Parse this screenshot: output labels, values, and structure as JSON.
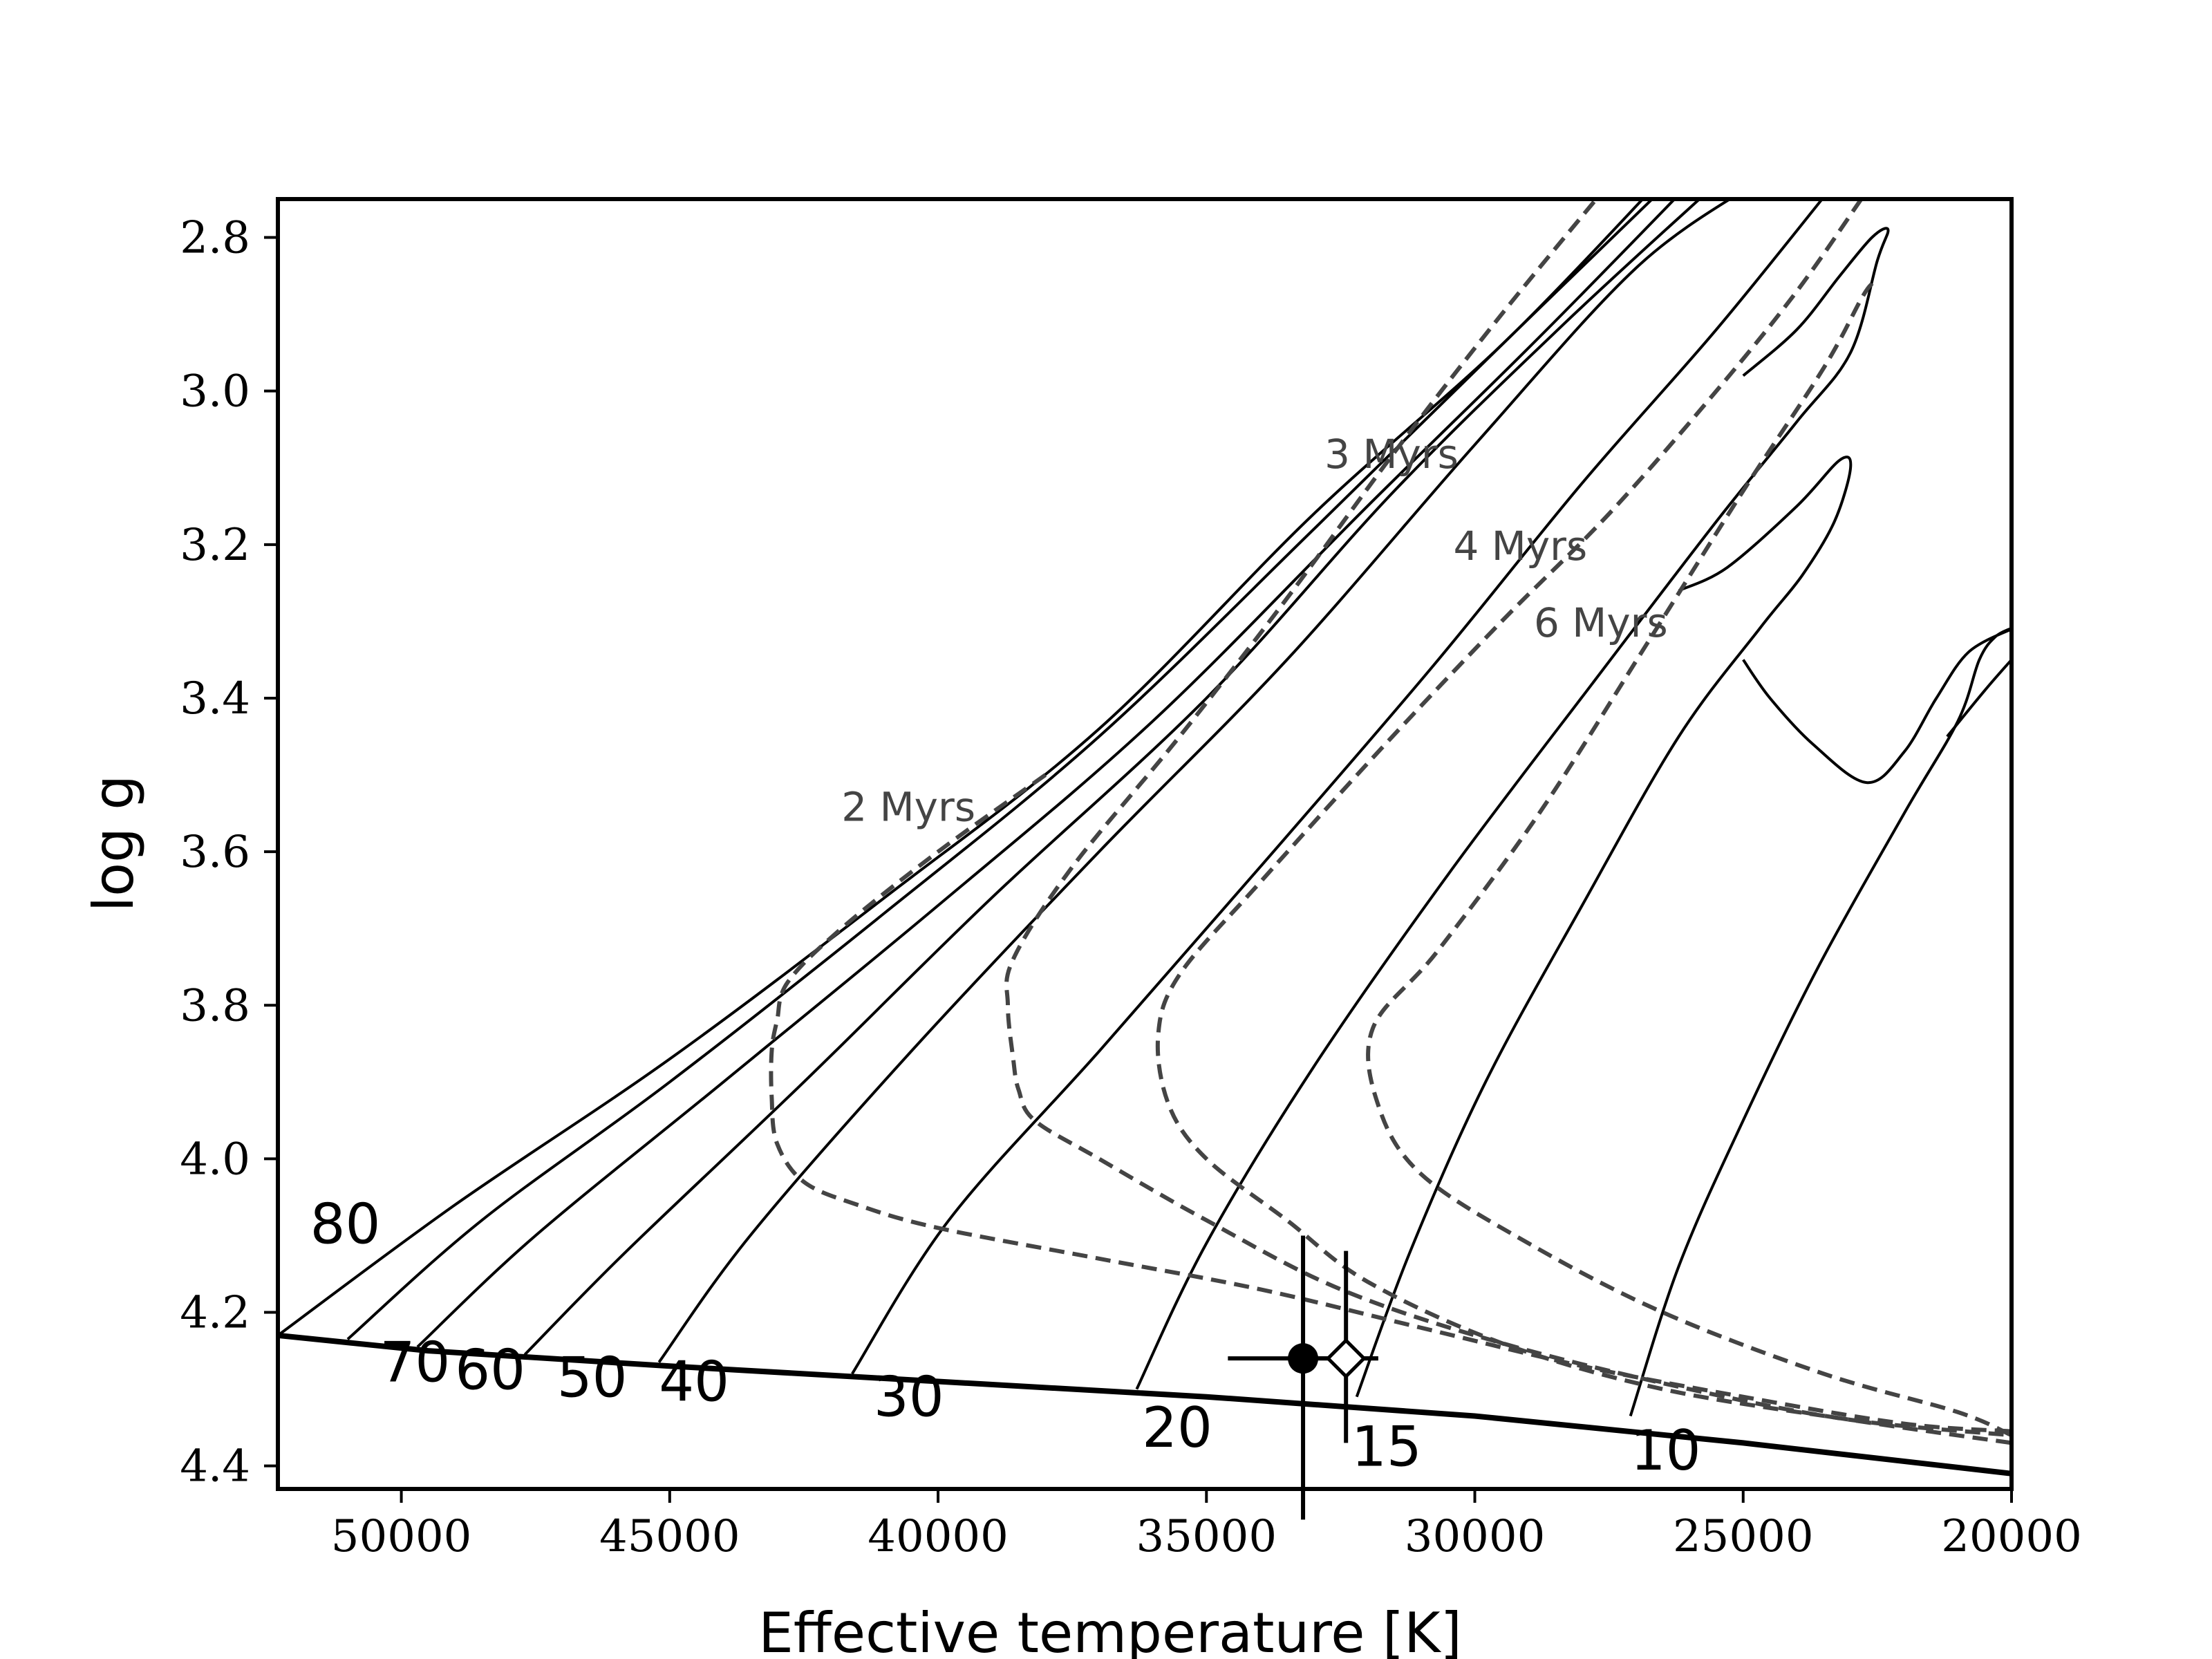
{
  "chart_data": {
    "type": "line",
    "title": "",
    "xlabel": "Effective temperature [K]",
    "ylabel": "log g",
    "xlim": [
      52300,
      20000
    ],
    "ylim": [
      4.43,
      2.75
    ],
    "x_ticks": [
      50000,
      45000,
      40000,
      35000,
      30000,
      25000,
      20000
    ],
    "x_tick_labels": [
      "50000",
      "45000",
      "40000",
      "35000",
      "30000",
      "25000",
      "20000"
    ],
    "y_ticks": [
      2.8,
      3.0,
      3.2,
      3.4,
      3.6,
      3.8,
      4.0,
      4.2,
      4.4
    ],
    "y_tick_labels": [
      "2.8",
      "3.0",
      "3.2",
      "3.4",
      "3.6",
      "3.8",
      "4.0",
      "4.2",
      "4.4"
    ],
    "grid": false,
    "zams": {
      "points": [
        [
          52300,
          4.23
        ],
        [
          49500,
          4.25
        ],
        [
          45000,
          4.27
        ],
        [
          40000,
          4.29
        ],
        [
          35000,
          4.31
        ],
        [
          30000,
          4.335
        ],
        [
          25000,
          4.37
        ],
        [
          20000,
          4.41
        ]
      ]
    },
    "tracks": [
      {
        "name": "80",
        "points": [
          [
            52300,
            4.23
          ],
          [
            49000,
            4.06
          ],
          [
            45000,
            3.87
          ],
          [
            41000,
            3.66
          ],
          [
            37000,
            3.44
          ],
          [
            33000,
            3.16
          ],
          [
            29500,
            2.94
          ],
          [
            26600,
            2.73
          ]
        ]
      },
      {
        "name": "70",
        "points": [
          [
            51000,
            4.235
          ],
          [
            48500,
            4.08
          ],
          [
            45000,
            3.9
          ],
          [
            41000,
            3.68
          ],
          [
            37000,
            3.45
          ],
          [
            33000,
            3.18
          ],
          [
            29500,
            2.94
          ],
          [
            26400,
            2.73
          ]
        ]
      },
      {
        "name": "60",
        "points": [
          [
            49700,
            4.245
          ],
          [
            47500,
            4.1
          ],
          [
            44000,
            3.9
          ],
          [
            40000,
            3.67
          ],
          [
            36000,
            3.43
          ],
          [
            32000,
            3.15
          ],
          [
            28800,
            2.93
          ],
          [
            26000,
            2.73
          ]
        ]
      },
      {
        "name": "50",
        "points": [
          [
            47700,
            4.255
          ],
          [
            45800,
            4.12
          ],
          [
            42500,
            3.9
          ],
          [
            39000,
            3.66
          ],
          [
            35000,
            3.4
          ],
          [
            31500,
            3.13
          ],
          [
            28300,
            2.91
          ],
          [
            25500,
            2.73
          ]
        ]
      },
      {
        "name": "40",
        "points": [
          [
            45200,
            4.265
          ],
          [
            43500,
            4.1
          ],
          [
            40500,
            3.86
          ],
          [
            37000,
            3.6
          ],
          [
            33500,
            3.35
          ],
          [
            30000,
            3.07
          ],
          [
            27000,
            2.84
          ],
          [
            24800,
            2.73
          ]
        ]
      },
      {
        "name": "30",
        "points": [
          [
            41600,
            4.28
          ],
          [
            39800,
            4.08
          ],
          [
            37000,
            3.86
          ],
          [
            34000,
            3.62
          ],
          [
            30800,
            3.36
          ],
          [
            28000,
            3.12
          ],
          [
            25500,
            2.92
          ],
          [
            23300,
            2.73
          ]
        ]
      },
      {
        "name": "20",
        "points": [
          [
            36300,
            4.3
          ],
          [
            35000,
            4.11
          ],
          [
            33000,
            3.88
          ],
          [
            30500,
            3.63
          ],
          [
            27800,
            3.38
          ],
          [
            25500,
            3.17
          ],
          [
            24000,
            3.04
          ],
          [
            23000,
            2.95
          ],
          [
            22500,
            2.83
          ],
          [
            22300,
            2.79
          ],
          [
            22600,
            2.8
          ],
          [
            23200,
            2.85
          ],
          [
            24000,
            2.92
          ],
          [
            25000,
            2.98
          ]
        ]
      },
      {
        "name": "15",
        "points": [
          [
            32200,
            4.31
          ],
          [
            31200,
            4.12
          ],
          [
            29800,
            3.9
          ],
          [
            28000,
            3.67
          ],
          [
            26200,
            3.45
          ],
          [
            24700,
            3.31
          ],
          [
            23900,
            3.24
          ],
          [
            23300,
            3.17
          ],
          [
            23000,
            3.1
          ],
          [
            23200,
            3.09
          ],
          [
            24000,
            3.15
          ],
          [
            25300,
            3.23
          ],
          [
            26200,
            3.26
          ]
        ]
      },
      {
        "name": "10",
        "points": [
          [
            27100,
            4.335
          ],
          [
            26200,
            4.14
          ],
          [
            25000,
            3.95
          ],
          [
            23600,
            3.75
          ],
          [
            22000,
            3.55
          ],
          [
            21000,
            3.43
          ],
          [
            20600,
            3.35
          ],
          [
            20300,
            3.32
          ],
          [
            20000,
            3.31
          ],
          [
            20800,
            3.34
          ],
          [
            21400,
            3.4
          ],
          [
            22000,
            3.47
          ],
          [
            22700,
            3.51
          ],
          [
            23700,
            3.46
          ],
          [
            24500,
            3.4
          ],
          [
            25000,
            3.35
          ]
        ]
      },
      {
        "name": "",
        "points": [
          [
            21200,
            3.45
          ],
          [
            20500,
            3.39
          ],
          [
            20000,
            3.35
          ]
        ]
      }
    ],
    "isochrones": [
      {
        "name": "2 Myrs",
        "points": [
          [
            38000,
            3.5
          ],
          [
            40000,
            3.6
          ],
          [
            41800,
            3.7
          ],
          [
            42800,
            3.77
          ],
          [
            43000,
            3.82
          ],
          [
            43100,
            3.86
          ],
          [
            43100,
            3.92
          ],
          [
            43000,
            3.98
          ],
          [
            42500,
            4.03
          ],
          [
            41500,
            4.06
          ],
          [
            40000,
            4.09
          ],
          [
            37000,
            4.13
          ],
          [
            34000,
            4.17
          ],
          [
            31000,
            4.22
          ],
          [
            28000,
            4.27
          ],
          [
            25000,
            4.31
          ],
          [
            22000,
            4.345
          ],
          [
            20000,
            4.355
          ]
        ]
      },
      {
        "name": "3 Myrs",
        "points": [
          [
            27500,
            2.73
          ],
          [
            29500,
            2.9
          ],
          [
            31500,
            3.08
          ],
          [
            33500,
            3.27
          ],
          [
            35500,
            3.45
          ],
          [
            37500,
            3.62
          ],
          [
            38600,
            3.74
          ],
          [
            38700,
            3.8
          ],
          [
            38600,
            3.87
          ],
          [
            38500,
            3.91
          ],
          [
            38200,
            3.95
          ],
          [
            37000,
            4.0
          ],
          [
            35000,
            4.08
          ],
          [
            32500,
            4.17
          ],
          [
            29500,
            4.24
          ],
          [
            26000,
            4.3
          ],
          [
            23000,
            4.34
          ],
          [
            20000,
            4.36
          ]
        ]
      },
      {
        "name": "4 Myrs",
        "points": [
          [
            22800,
            2.75
          ],
          [
            24000,
            2.87
          ],
          [
            25500,
            3.0
          ],
          [
            27500,
            3.16
          ],
          [
            29500,
            3.3
          ],
          [
            31800,
            3.47
          ],
          [
            34000,
            3.64
          ],
          [
            35500,
            3.76
          ],
          [
            35900,
            3.84
          ],
          [
            35700,
            3.93
          ],
          [
            35000,
            4.0
          ],
          [
            33500,
            4.08
          ],
          [
            32000,
            4.16
          ],
          [
            29500,
            4.24
          ],
          [
            26500,
            4.3
          ],
          [
            23000,
            4.34
          ],
          [
            20000,
            4.37
          ]
        ]
      },
      {
        "name": "6 Myrs",
        "points": [
          [
            22600,
            2.86
          ],
          [
            22800,
            2.88
          ],
          [
            23500,
            2.97
          ],
          [
            25000,
            3.13
          ],
          [
            26800,
            3.33
          ],
          [
            28800,
            3.55
          ],
          [
            30700,
            3.73
          ],
          [
            31900,
            3.83
          ],
          [
            31800,
            3.93
          ],
          [
            31000,
            4.02
          ],
          [
            29000,
            4.11
          ],
          [
            26500,
            4.2
          ],
          [
            23500,
            4.28
          ],
          [
            21000,
            4.33
          ],
          [
            20000,
            4.36
          ]
        ]
      }
    ],
    "mass_labels": [
      {
        "text": "80",
        "x": 51700,
        "y": 4.11
      },
      {
        "text": "70",
        "x": 50400,
        "y": 4.29
      },
      {
        "text": "60",
        "x": 49000,
        "y": 4.3
      },
      {
        "text": "50",
        "x": 47100,
        "y": 4.31
      },
      {
        "text": "40",
        "x": 45200,
        "y": 4.315
      },
      {
        "text": "30",
        "x": 41200,
        "y": 4.335
      },
      {
        "text": "20",
        "x": 36200,
        "y": 4.375
      },
      {
        "text": "15",
        "x": 32300,
        "y": 4.4
      },
      {
        "text": "10",
        "x": 27100,
        "y": 4.405
      }
    ],
    "isochrone_labels": [
      {
        "text": "2 Myrs",
        "x": 41800,
        "y": 3.56
      },
      {
        "text": "3 Myrs",
        "x": 32800,
        "y": 3.1
      },
      {
        "text": "4 Myrs",
        "x": 30400,
        "y": 3.22
      },
      {
        "text": "6 Myrs",
        "x": 28900,
        "y": 3.32
      }
    ],
    "data_points": [
      {
        "marker": "filled-circle",
        "x": 33200,
        "y": 4.26,
        "xerr": 1400,
        "yerr_low": 0.21,
        "yerr_high": 0.16
      },
      {
        "marker": "open-diamond",
        "x": 32400,
        "y": 4.26,
        "xerr": 600,
        "yerr_low": 0.11,
        "yerr_high": 0.14
      }
    ]
  }
}
